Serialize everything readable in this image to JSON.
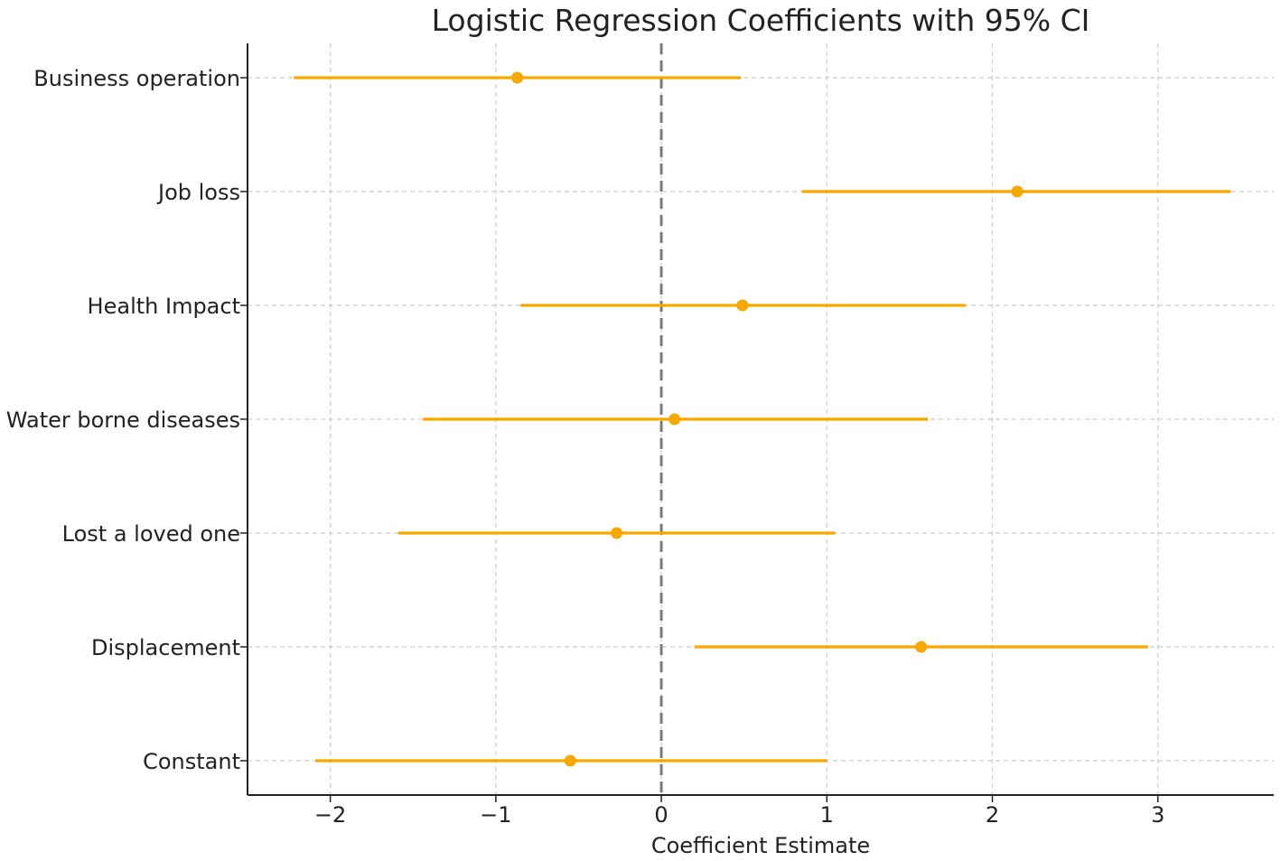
{
  "chart_data": {
    "type": "scatter",
    "style": "coefficient-plot-with-error-bars",
    "title": "Logistic Regression Coefficients with 95% CI",
    "xlabel": "Coefficient Estimate",
    "ylabel": "",
    "xlim": [
      -2.5,
      3.7
    ],
    "xticks": [
      -2,
      -1,
      0,
      1,
      2,
      3
    ],
    "xtick_labels": [
      "−2",
      "−1",
      "0",
      "1",
      "2",
      "3"
    ],
    "reference_line": {
      "x": 0,
      "style": "dashed",
      "color": "#7a7a7a"
    },
    "grid": true,
    "color": "#f5a800",
    "variables": [
      {
        "name": "Business operation",
        "estimate": -0.87,
        "ci_low": -2.22,
        "ci_high": 0.48
      },
      {
        "name": "Job loss",
        "estimate": 2.15,
        "ci_low": 0.85,
        "ci_high": 3.44
      },
      {
        "name": "Health Impact",
        "estimate": 0.49,
        "ci_low": -0.85,
        "ci_high": 1.84
      },
      {
        "name": "Water borne diseases",
        "estimate": 0.08,
        "ci_low": -1.44,
        "ci_high": 1.61
      },
      {
        "name": "Lost a loved one",
        "estimate": -0.27,
        "ci_low": -1.59,
        "ci_high": 1.05
      },
      {
        "name": "Displacement",
        "estimate": 1.57,
        "ci_low": 0.2,
        "ci_high": 2.94
      },
      {
        "name": "Constant",
        "estimate": -0.55,
        "ci_low": -2.09,
        "ci_high": 1.0
      }
    ]
  }
}
